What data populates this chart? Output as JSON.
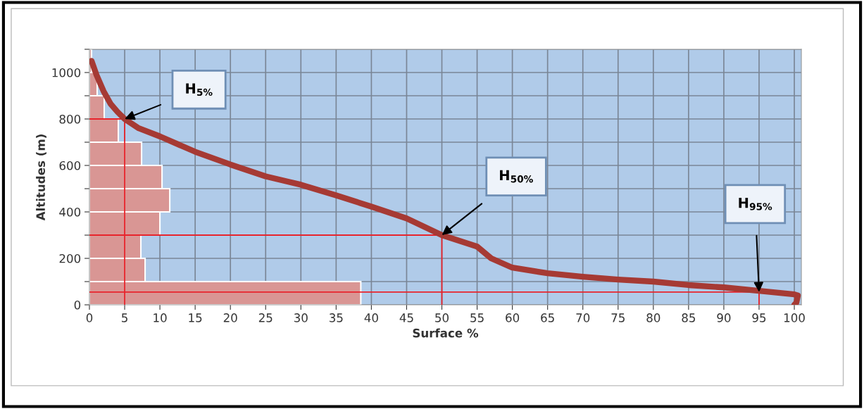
{
  "chart_data": {
    "type": "histogram",
    "orientation": "horizontal",
    "xlabel": "Surface %",
    "ylabel": "Altitudes (m)",
    "bins": [
      0,
      100,
      200,
      300,
      400,
      500,
      600,
      700,
      800,
      900,
      1000,
      1100
    ],
    "values": [
      38.5,
      7.9,
      7.3,
      10.0,
      11.4,
      10.3,
      7.4,
      4.1,
      2.1,
      1.1,
      0.3
    ],
    "color": "#d99694",
    "series": [
      {
        "type": "line",
        "color": "#a63a34",
        "values": [
          0.3,
          1,
          2,
          3,
          4,
          5,
          7,
          10,
          15,
          20,
          25,
          30,
          35,
          40,
          45,
          50,
          55,
          57,
          60,
          65,
          70,
          75,
          80,
          85,
          90,
          95,
          100,
          100.5,
          100.3,
          100
        ],
        "x": [
          1050,
          990,
          920,
          865,
          830,
          800,
          760,
          725,
          659,
          604,
          553,
          517,
          471,
          423,
          372,
          300,
          251,
          200,
          160,
          136,
          121,
          109,
          100,
          85,
          75,
          60,
          45,
          40,
          10,
          0
        ]
      },
      {
        "type": "line",
        "color": "#e8242c",
        "values": [
          0,
          5,
          5
        ],
        "x": [
          800,
          800,
          0
        ]
      },
      {
        "type": "line",
        "color": "#e8242c",
        "values": [
          0,
          50,
          50
        ],
        "x": [
          300,
          300,
          0
        ]
      },
      {
        "type": "line",
        "color": "#e8242c",
        "values": [
          0,
          95,
          95
        ],
        "x": [
          55,
          55,
          0
        ]
      }
    ],
    "annotations": [
      "H$_{5%}$",
      "H$_{50%}$",
      "H$_{95%}$"
    ],
    "xlim": [
      0,
      101
    ],
    "xticks": [
      0,
      5,
      10,
      15,
      20,
      25,
      30,
      35,
      40,
      45,
      50,
      55,
      60,
      65,
      70,
      75,
      80,
      85,
      90,
      95,
      100
    ],
    "ylim": [
      0,
      1100
    ],
    "yticks": [
      0,
      {
        "value": 100,
        "label": null
      },
      200,
      {
        "value": 300,
        "label": null
      },
      400,
      {
        "value": 500,
        "label": null
      },
      600,
      {
        "value": 700,
        "label": null
      },
      800,
      {
        "value": 900,
        "label": null
      },
      1000,
      {
        "value": 1100,
        "label": null
      }
    ],
    "grid": true
  }
}
